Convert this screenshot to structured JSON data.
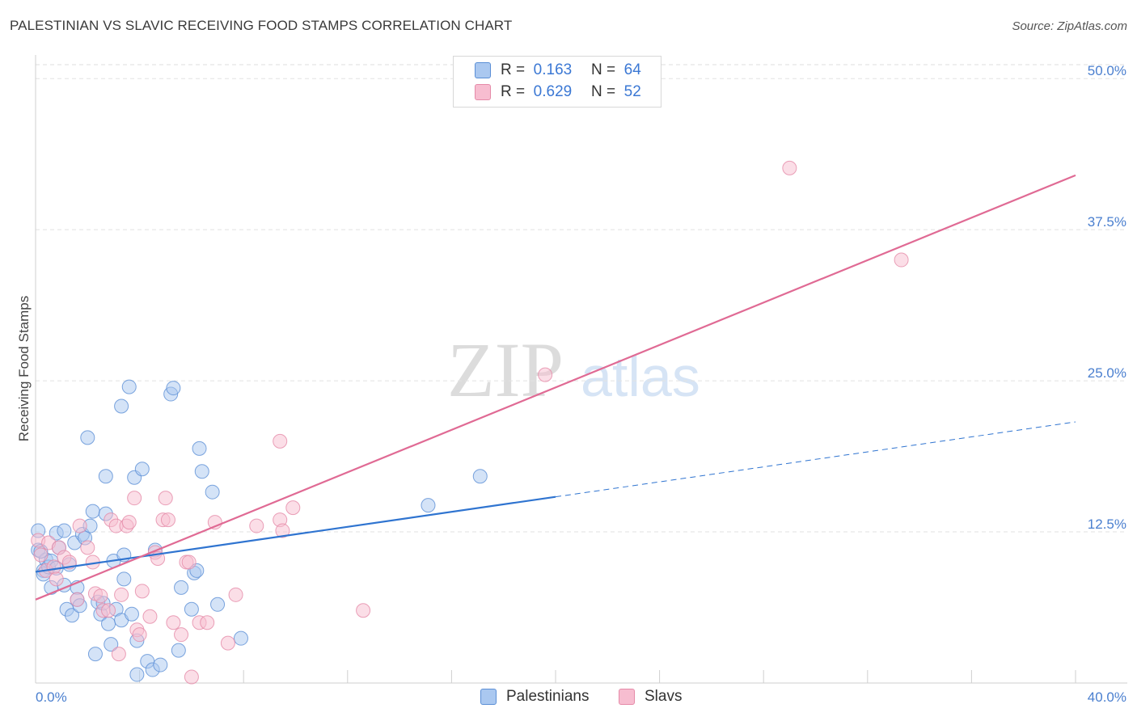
{
  "title": "PALESTINIAN VS SLAVIC RECEIVING FOOD STAMPS CORRELATION CHART",
  "source": "Source: ZipAtlas.com",
  "watermark": {
    "zip": "ZIP",
    "atlas": "atlas"
  },
  "legend": {
    "r_label": "R =",
    "n_label": "N =",
    "rows": [
      {
        "series": "Palestinians",
        "r": "0.163",
        "n": "64"
      },
      {
        "series": "Slavs",
        "r": "0.629",
        "n": "52"
      }
    ]
  },
  "bottom_legend": [
    "Palestinians",
    "Slavs"
  ],
  "colors": {
    "palestinians_fill": "#aac8f0",
    "palestinians_stroke": "#5b8fd6",
    "palestinians_line": "#2f74d0",
    "slavs_fill": "#f7bdd0",
    "slavs_stroke": "#e58aa8",
    "slavs_line": "#e06a94",
    "tick_text": "#4a7fcf"
  },
  "chart_data": {
    "type": "scatter",
    "title": "PALESTINIAN VS SLAVIC RECEIVING FOOD STAMPS CORRELATION CHART",
    "xlabel": "",
    "ylabel": "Receiving Food Stamps",
    "xlim": [
      0,
      40
    ],
    "ylim": [
      0,
      50
    ],
    "x_tick_labels": [
      "0.0%",
      "40.0%"
    ],
    "y_ticks": [
      12.5,
      25.0,
      37.5,
      50.0
    ],
    "y_tick_labels": [
      "12.5%",
      "25.0%",
      "37.5%",
      "50.0%"
    ],
    "grid": "horizontal dashed",
    "legend_position": "top-center",
    "series": [
      {
        "name": "Palestinians",
        "r": 0.163,
        "n": 64,
        "trend": {
          "x_start": 0,
          "y_start": 9.2,
          "x_end": 20,
          "y_end": 15.4,
          "dashed_to_x": 40,
          "dashed_to_y": 21.6
        },
        "points": [
          [
            0.1,
            12.6
          ],
          [
            0.1,
            11.0
          ],
          [
            0.3,
            9.3
          ],
          [
            0.3,
            9.0
          ],
          [
            0.4,
            10.2
          ],
          [
            0.5,
            9.6
          ],
          [
            0.6,
            10.1
          ],
          [
            0.6,
            7.9
          ],
          [
            0.8,
            12.4
          ],
          [
            0.8,
            9.5
          ],
          [
            0.9,
            11.2
          ],
          [
            1.1,
            12.6
          ],
          [
            1.1,
            8.1
          ],
          [
            1.2,
            6.1
          ],
          [
            1.3,
            9.8
          ],
          [
            1.4,
            5.6
          ],
          [
            1.5,
            11.6
          ],
          [
            1.6,
            7.9
          ],
          [
            1.6,
            6.9
          ],
          [
            1.7,
            6.4
          ],
          [
            1.8,
            12.3
          ],
          [
            1.9,
            12.0
          ],
          [
            2.0,
            20.3
          ],
          [
            2.1,
            13.0
          ],
          [
            2.2,
            14.2
          ],
          [
            2.3,
            2.4
          ],
          [
            2.4,
            6.7
          ],
          [
            2.5,
            5.7
          ],
          [
            2.6,
            6.6
          ],
          [
            2.7,
            17.1
          ],
          [
            2.7,
            14.0
          ],
          [
            2.8,
            4.9
          ],
          [
            2.9,
            3.2
          ],
          [
            3.0,
            10.1
          ],
          [
            3.1,
            6.1
          ],
          [
            3.3,
            5.2
          ],
          [
            3.3,
            22.9
          ],
          [
            3.4,
            8.6
          ],
          [
            3.4,
            10.6
          ],
          [
            3.6,
            24.5
          ],
          [
            3.7,
            5.7
          ],
          [
            3.8,
            17.0
          ],
          [
            3.9,
            0.7
          ],
          [
            3.9,
            3.5
          ],
          [
            4.1,
            17.7
          ],
          [
            4.3,
            1.8
          ],
          [
            4.5,
            1.1
          ],
          [
            4.6,
            11.0
          ],
          [
            4.8,
            1.5
          ],
          [
            5.2,
            23.9
          ],
          [
            5.3,
            24.4
          ],
          [
            5.5,
            2.7
          ],
          [
            5.6,
            7.9
          ],
          [
            6.0,
            6.1
          ],
          [
            6.1,
            9.1
          ],
          [
            6.2,
            9.3
          ],
          [
            6.3,
            19.4
          ],
          [
            6.4,
            17.5
          ],
          [
            6.8,
            15.8
          ],
          [
            7.0,
            6.5
          ],
          [
            7.9,
            3.7
          ],
          [
            15.1,
            14.7
          ],
          [
            17.1,
            17.1
          ],
          [
            0.2,
            10.9
          ]
        ]
      },
      {
        "name": "Slavs",
        "r": 0.629,
        "n": 52,
        "trend": {
          "x_start": 0,
          "y_start": 6.9,
          "x_end": 40,
          "y_end": 42.0
        },
        "points": [
          [
            0.1,
            11.8
          ],
          [
            0.2,
            10.6
          ],
          [
            0.4,
            9.3
          ],
          [
            0.5,
            11.6
          ],
          [
            0.7,
            9.6
          ],
          [
            0.8,
            8.6
          ],
          [
            0.9,
            11.2
          ],
          [
            1.1,
            10.4
          ],
          [
            1.3,
            10.0
          ],
          [
            1.6,
            6.9
          ],
          [
            1.7,
            13.0
          ],
          [
            2.0,
            11.2
          ],
          [
            2.2,
            10.0
          ],
          [
            2.3,
            7.4
          ],
          [
            2.5,
            7.2
          ],
          [
            2.6,
            6.0
          ],
          [
            2.8,
            6.0
          ],
          [
            2.9,
            13.5
          ],
          [
            3.1,
            13.0
          ],
          [
            3.2,
            2.4
          ],
          [
            3.3,
            7.3
          ],
          [
            3.5,
            13.0
          ],
          [
            3.6,
            13.3
          ],
          [
            3.8,
            15.3
          ],
          [
            3.9,
            4.4
          ],
          [
            4.0,
            4.0
          ],
          [
            4.1,
            7.6
          ],
          [
            4.4,
            5.5
          ],
          [
            4.6,
            10.8
          ],
          [
            4.7,
            10.3
          ],
          [
            4.9,
            13.5
          ],
          [
            5.0,
            15.3
          ],
          [
            5.1,
            13.5
          ],
          [
            5.3,
            5.0
          ],
          [
            5.6,
            4.0
          ],
          [
            5.8,
            10.0
          ],
          [
            5.9,
            10.0
          ],
          [
            6.0,
            0.5
          ],
          [
            6.3,
            5.0
          ],
          [
            6.6,
            5.0
          ],
          [
            6.9,
            13.3
          ],
          [
            7.4,
            3.3
          ],
          [
            7.7,
            7.3
          ],
          [
            8.5,
            13.0
          ],
          [
            9.4,
            13.5
          ],
          [
            9.5,
            12.6
          ],
          [
            9.9,
            14.5
          ],
          [
            12.6,
            6.0
          ],
          [
            19.6,
            25.5
          ],
          [
            29.0,
            42.6
          ],
          [
            33.3,
            35.0
          ],
          [
            9.4,
            20.0
          ]
        ]
      }
    ]
  }
}
